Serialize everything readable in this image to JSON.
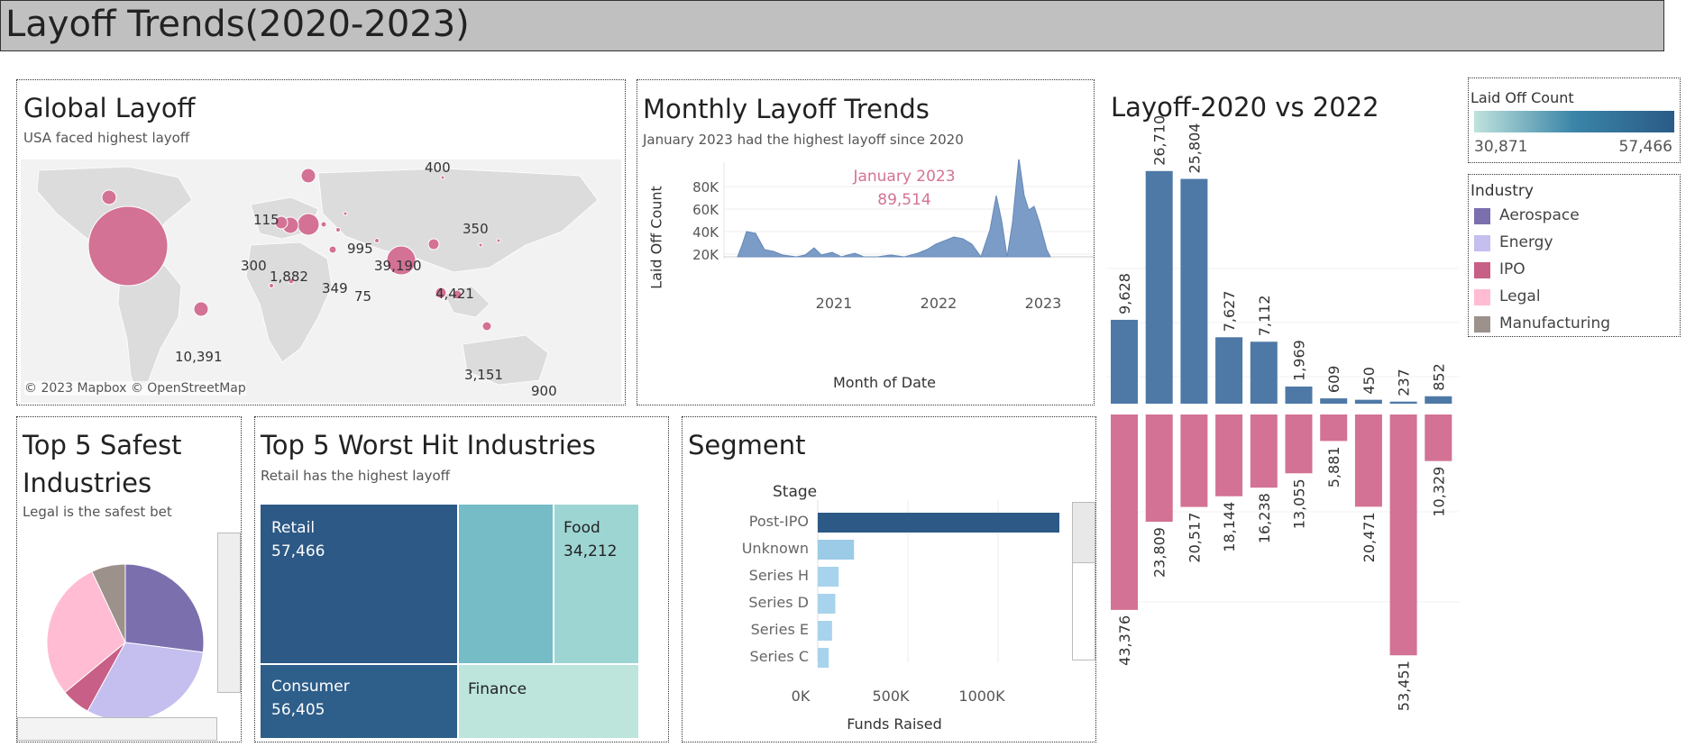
{
  "dashboard": {
    "title": "Layoff Trends(2020-2023)"
  },
  "global": {
    "title": "Global Layoff",
    "subtitle": "USA faced highest layoff",
    "attribution": "© 2023 Mapbox © OpenStreetMap",
    "labels": [
      {
        "text": "400"
      },
      {
        "text": "115"
      },
      {
        "text": "350"
      },
      {
        "text": "995"
      },
      {
        "text": "39,190"
      },
      {
        "text": "300"
      },
      {
        "text": "1,882"
      },
      {
        "text": "349"
      },
      {
        "text": "75"
      },
      {
        "text": "4,421"
      },
      {
        "text": "10,391"
      },
      {
        "text": "3,151"
      },
      {
        "text": "900"
      }
    ]
  },
  "monthly": {
    "title": "Monthly Layoff Trends",
    "subtitle": "January 2023 had the highest layoff since 2020",
    "annotation_line1": "January 2023",
    "annotation_line2": "89,514",
    "ylabel": "Laid Off Count",
    "xlabel": "Month of Date",
    "yticks": [
      "80K",
      "60K",
      "40K",
      "20K"
    ],
    "xticks": [
      "2021",
      "2022",
      "2023"
    ],
    "color": "#7a9cc6"
  },
  "compare": {
    "title": "Layoff-2020 vs 2022",
    "top_values": [
      9628,
      26710,
      25804,
      7627,
      7112,
      1969,
      609,
      450,
      237,
      852
    ],
    "bottom_values": [
      43376,
      23809,
      20517,
      18144,
      16238,
      13055,
      5881,
      20471,
      53451,
      10329
    ],
    "top_labels": [
      "9,628",
      "26,710",
      "25,804",
      "7,627",
      "7,112",
      "1,969",
      "609",
      "450",
      "237",
      "852"
    ],
    "bottom_labels": [
      "43,376",
      "23,809",
      "20,517",
      "18,144",
      "16,238",
      "13,055",
      "5,881",
      "20,471",
      "53,451",
      "10,329"
    ],
    "top_color": "#4e79a7",
    "bottom_color": "#d37295"
  },
  "legend_color": {
    "title": "Laid Off Count",
    "min": "30,871",
    "max": "57,466"
  },
  "legend_industry": {
    "title": "Industry",
    "items": [
      {
        "label": "Aerospace",
        "color": "#7b6fad"
      },
      {
        "label": "Energy",
        "color": "#c4bfef"
      },
      {
        "label": "IPO",
        "color": "#c85f86"
      },
      {
        "label": "Legal",
        "color": "#ffbcd2"
      },
      {
        "label": "Manufacturing",
        "color": "#9d918b"
      }
    ]
  },
  "safest": {
    "title_line1": "Top 5 Safest",
    "title_line2": "Industries",
    "subtitle": "Legal is the safest bet"
  },
  "worst": {
    "title": "Top 5 Worst Hit Industries",
    "subtitle": "Retail has the highest layoff",
    "retail_label": "Retail",
    "retail_value": "57,466",
    "consumer_label": "Consumer",
    "consumer_value": "56,405",
    "food_label": "Food",
    "food_value": "34,212",
    "finance_label": "Finance"
  },
  "segment": {
    "title": "Segment",
    "header": "Stage",
    "stages": [
      "Post-IPO",
      "Unknown",
      "Series H",
      "Series D",
      "Series E",
      "Series C"
    ],
    "values": [
      1100000,
      165000,
      95000,
      80000,
      65000,
      50000
    ],
    "xticks": [
      "0K",
      "500K",
      "1000K"
    ],
    "xlabel": "Funds Raised"
  }
}
